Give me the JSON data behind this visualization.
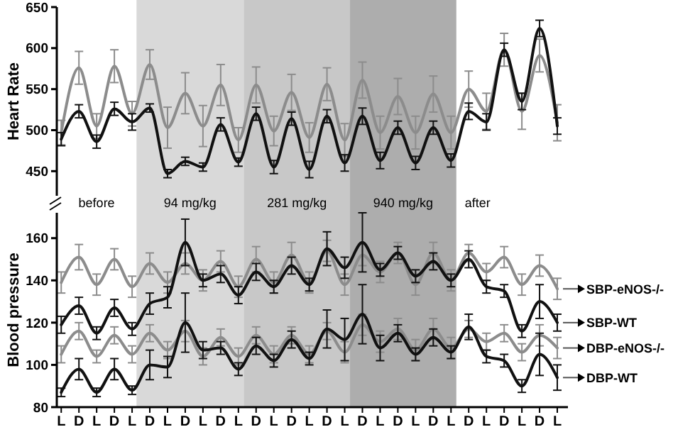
{
  "chart_data": [
    {
      "type": "line",
      "ylabel": "Heart Rate",
      "categories": [
        null,
        null,
        null,
        null,
        null,
        null,
        null,
        null,
        null,
        null,
        null,
        null,
        null,
        null,
        null,
        null,
        null,
        null,
        null,
        null,
        null,
        null,
        null,
        null,
        null,
        null,
        null,
        null,
        null
      ],
      "ylim": [
        420,
        650
      ],
      "yticks": [
        450,
        500,
        550,
        600,
        650
      ],
      "annotations": [
        "before",
        "94 mg/kg",
        "281 mg/kg",
        "940 mg/kg",
        "after"
      ],
      "series": [
        {
          "color": "#8c8c8c",
          "values": [
            497,
            576,
            505,
            578,
            520,
            580,
            503,
            545,
            505,
            555,
            488,
            555,
            499,
            546,
            491,
            556,
            488,
            561,
            497,
            541,
            497,
            544,
            497,
            550,
            523,
            598,
            523,
            591,
            509
          ],
          "errors": [
            15,
            20,
            15,
            20,
            15,
            18,
            25,
            25,
            25,
            25,
            15,
            22,
            18,
            22,
            18,
            20,
            20,
            22,
            20,
            22,
            20,
            22,
            20,
            22,
            22,
            20,
            22,
            20,
            22
          ]
        },
        {
          "color": "#111111",
          "values": [
            489,
            523,
            486,
            526,
            510,
            527,
            447,
            462,
            455,
            507,
            461,
            520,
            455,
            514,
            452,
            517,
            460,
            517,
            463,
            503,
            460,
            503,
            463,
            523,
            510,
            598,
            535,
            624,
            505
          ],
          "errors": [
            8,
            8,
            8,
            8,
            10,
            5,
            5,
            5,
            5,
            8,
            5,
            8,
            8,
            8,
            10,
            8,
            10,
            10,
            10,
            8,
            8,
            8,
            8,
            10,
            10,
            8,
            10,
            10,
            10
          ]
        }
      ]
    },
    {
      "type": "line",
      "ylabel": "Blood pressure",
      "ylim": [
        80,
        172
      ],
      "yticks": [
        80,
        100,
        120,
        140,
        160
      ],
      "legend": "right",
      "categories": [
        "L",
        "D",
        "L",
        "D",
        "L",
        "D",
        "L",
        "D",
        "L",
        "D",
        "L",
        "D",
        "L",
        "D",
        "L",
        "D",
        "L",
        "D",
        "L",
        "D",
        "L",
        "D",
        "L",
        "D",
        "L",
        "D",
        "L",
        "D",
        "L"
      ],
      "series": [
        {
          "name": "SBP-eNOS-/-",
          "color": "#8c8c8c",
          "values": [
            139,
            151,
            138,
            150,
            137,
            148,
            139,
            148,
            140,
            149,
            137,
            150,
            139,
            152,
            139,
            154,
            138,
            152,
            144,
            153,
            138,
            153,
            140,
            153,
            144,
            151,
            138,
            147,
            136
          ],
          "errors": [
            5,
            6,
            5,
            5,
            5,
            5,
            5,
            5,
            5,
            5,
            5,
            6,
            5,
            6,
            5,
            5,
            5,
            5,
            5,
            5,
            5,
            5,
            5,
            4,
            4,
            5,
            5,
            5,
            5
          ]
        },
        {
          "name": "SBP-WT",
          "color": "#111111",
          "values": [
            119,
            128,
            115,
            127,
            117,
            129,
            132,
            158,
            140,
            143,
            133,
            144,
            137,
            147,
            138,
            155,
            146,
            158,
            145,
            153,
            142,
            149,
            140,
            150,
            137,
            135,
            116,
            130,
            120
          ],
          "errors": [
            4,
            4,
            3,
            4,
            3,
            5,
            5,
            11,
            3,
            4,
            4,
            4,
            3,
            4,
            3,
            8,
            5,
            14,
            3,
            3,
            3,
            4,
            3,
            4,
            3,
            3,
            3,
            8,
            4
          ]
        },
        {
          "name": "DBP-eNOS-/-",
          "color": "#8c8c8c",
          "values": [
            105,
            116,
            104,
            114,
            105,
            115,
            107,
            116,
            104,
            113,
            104,
            114,
            105,
            114,
            105,
            116,
            106,
            119,
            111,
            117,
            107,
            117,
            108,
            117,
            111,
            115,
            106,
            114,
            108
          ],
          "errors": [
            4,
            4,
            3,
            4,
            4,
            4,
            4,
            5,
            4,
            4,
            4,
            4,
            4,
            4,
            4,
            4,
            5,
            5,
            5,
            5,
            5,
            5,
            5,
            4,
            4,
            4,
            4,
            5,
            5
          ]
        },
        {
          "name": "DBP-WT",
          "color": "#111111",
          "values": [
            87,
            98,
            87,
            98,
            88,
            100,
            99,
            120,
            107,
            108,
            98,
            109,
            102,
            112,
            103,
            117,
            112,
            124,
            108,
            115,
            105,
            113,
            106,
            118,
            104,
            102,
            90,
            105,
            94
          ],
          "errors": [
            2,
            5,
            2,
            5,
            2,
            7,
            5,
            14,
            4,
            3,
            3,
            4,
            3,
            4,
            3,
            9,
            10,
            14,
            6,
            4,
            3,
            4,
            3,
            6,
            3,
            3,
            3,
            10,
            6
          ]
        }
      ]
    }
  ]
}
